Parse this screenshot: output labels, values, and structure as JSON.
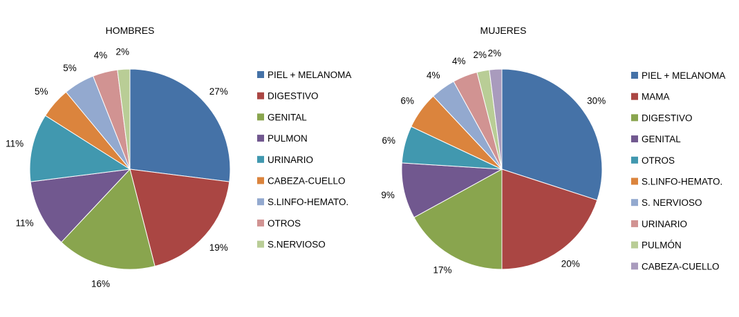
{
  "chart_data": [
    {
      "type": "pie",
      "title": "HOMBRES",
      "legend_position": "right",
      "start_angle": "top, clockwise",
      "slices": [
        {
          "label": "PIEL + MELANOMA",
          "value": 27,
          "value_label": "27%",
          "color": "#4572A7"
        },
        {
          "label": "DIGESTIVO",
          "value": 19,
          "value_label": "19%",
          "color": "#AA4643"
        },
        {
          "label": "GENITAL",
          "value": 16,
          "value_label": "16%",
          "color": "#89A54E"
        },
        {
          "label": "PULMON",
          "value": 11,
          "value_label": "11%",
          "color": "#71588F"
        },
        {
          "label": "URINARIO",
          "value": 11,
          "value_label": "11%",
          "color": "#4198AF"
        },
        {
          "label": "CABEZA-CUELLO",
          "value": 5,
          "value_label": "5%",
          "color": "#DB843D"
        },
        {
          "label": "S.LINFO-HEMATO.",
          "value": 5,
          "value_label": "5%",
          "color": "#93A9CF"
        },
        {
          "label": "OTROS",
          "value": 4,
          "value_label": "4%",
          "color": "#D19392"
        },
        {
          "label": "S.NERVIOSO",
          "value": 2,
          "value_label": "2%",
          "color": "#B9CD96"
        }
      ]
    },
    {
      "type": "pie",
      "title": "MUJERES",
      "legend_position": "right",
      "start_angle": "top, clockwise",
      "slices": [
        {
          "label": "PIEL + MELANOMA",
          "value": 30,
          "value_label": "30%",
          "color": "#4572A7"
        },
        {
          "label": "MAMA",
          "value": 20,
          "value_label": "20%",
          "color": "#AA4643"
        },
        {
          "label": "DIGESTIVO",
          "value": 17,
          "value_label": "17%",
          "color": "#89A54E"
        },
        {
          "label": "GENITAL",
          "value": 9,
          "value_label": "9%",
          "color": "#71588F"
        },
        {
          "label": "OTROS",
          "value": 6,
          "value_label": "6%",
          "color": "#4198AF"
        },
        {
          "label": "S.LINFO-HEMATO.",
          "value": 6,
          "value_label": "6%",
          "color": "#DB843D"
        },
        {
          "label": "S. NERVIOSO",
          "value": 4,
          "value_label": "4%",
          "color": "#93A9CF"
        },
        {
          "label": "URINARIO",
          "value": 4,
          "value_label": "4%",
          "color": "#D19392"
        },
        {
          "label": "PULMÓN",
          "value": 2,
          "value_label": "2%",
          "color": "#B9CD96"
        },
        {
          "label": "CABEZA-CUELLO",
          "value": 2,
          "value_label": "2%",
          "color": "#A99BBD"
        }
      ]
    }
  ]
}
